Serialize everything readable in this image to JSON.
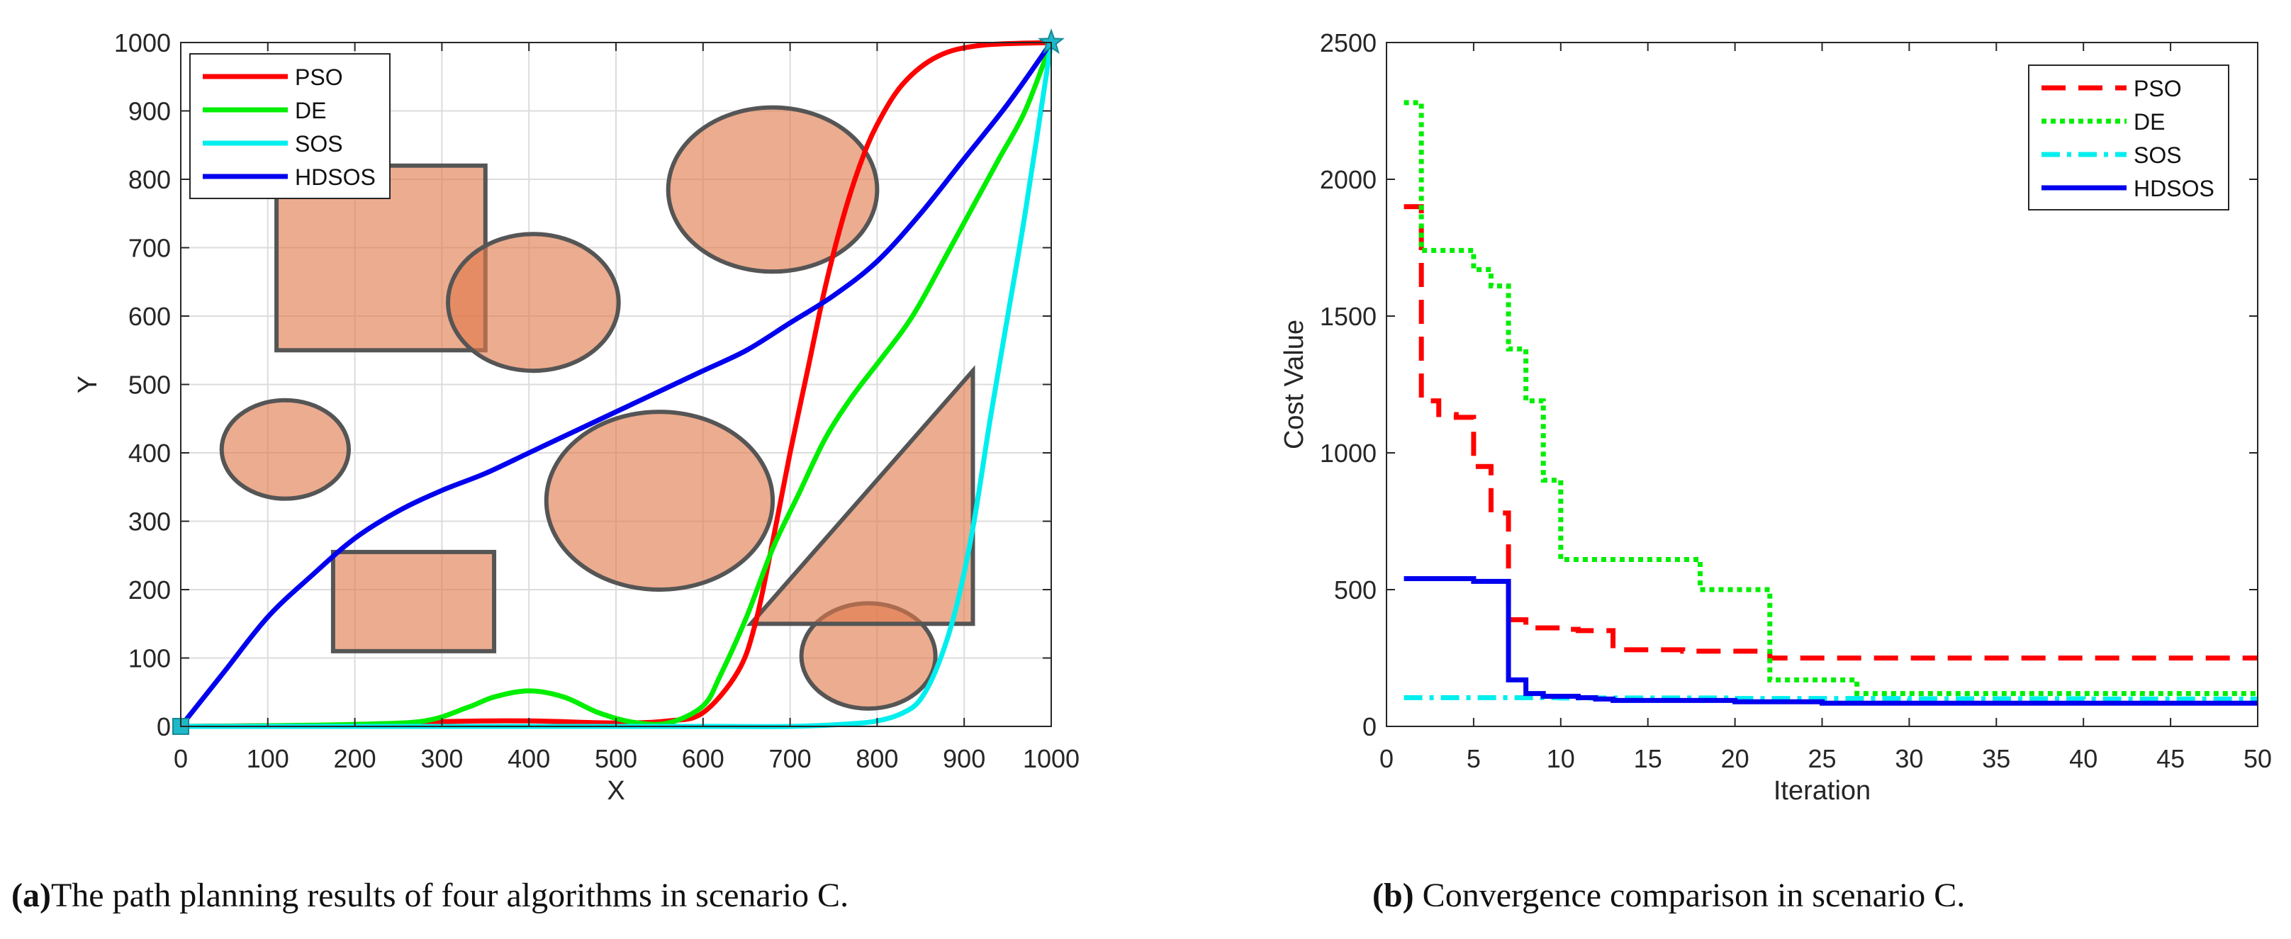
{
  "chart_data": [
    {
      "type": "line",
      "subtype": "path-planning",
      "xlabel": "X",
      "ylabel": "Y",
      "xlim": [
        0,
        1000
      ],
      "ylim": [
        0,
        1000
      ],
      "xticks": [
        0,
        100,
        200,
        300,
        400,
        500,
        600,
        700,
        800,
        900,
        1000
      ],
      "yticks": [
        0,
        100,
        200,
        300,
        400,
        500,
        600,
        700,
        800,
        900,
        1000
      ],
      "grid": true,
      "legend_position": "top-left",
      "start": [
        0,
        0
      ],
      "goal": [
        1000,
        1000
      ],
      "obstacles": [
        {
          "shape": "rect",
          "x": [
            110,
            350
          ],
          "y": [
            550,
            820
          ]
        },
        {
          "shape": "rect",
          "x": [
            175,
            360
          ],
          "y": [
            110,
            255
          ]
        },
        {
          "shape": "ellipse",
          "cx": 405,
          "cy": 620,
          "rx": 98,
          "ry": 100
        },
        {
          "shape": "ellipse",
          "cx": 120,
          "cy": 405,
          "rx": 73,
          "ry": 72
        },
        {
          "shape": "ellipse",
          "cx": 680,
          "cy": 785,
          "rx": 120,
          "ry": 120
        },
        {
          "shape": "ellipse",
          "cx": 550,
          "cy": 330,
          "rx": 130,
          "ry": 130
        },
        {
          "shape": "ellipse",
          "cx": 790,
          "cy": 103,
          "rx": 77,
          "ry": 77
        },
        {
          "shape": "triangle",
          "points": [
            [
              655,
              150
            ],
            [
              910,
              150
            ],
            [
              910,
              520
            ]
          ]
        }
      ],
      "series": [
        {
          "name": "PSO",
          "color": "#ff0000",
          "points": [
            [
              0,
              0
            ],
            [
              100,
              1
            ],
            [
              200,
              2
            ],
            [
              300,
              7
            ],
            [
              400,
              8
            ],
            [
              500,
              5
            ],
            [
              560,
              8
            ],
            [
              600,
              20
            ],
            [
              640,
              80
            ],
            [
              660,
              150
            ],
            [
              680,
              270
            ],
            [
              700,
              400
            ],
            [
              720,
              520
            ],
            [
              740,
              640
            ],
            [
              760,
              740
            ],
            [
              780,
              820
            ],
            [
              800,
              880
            ],
            [
              830,
              940
            ],
            [
              870,
              980
            ],
            [
              920,
              996
            ],
            [
              1000,
              1000
            ]
          ]
        },
        {
          "name": "DE",
          "color": "#00ee00",
          "points": [
            [
              0,
              0
            ],
            [
              100,
              1
            ],
            [
              200,
              3
            ],
            [
              280,
              8
            ],
            [
              330,
              28
            ],
            [
              360,
              43
            ],
            [
              400,
              52
            ],
            [
              440,
              43
            ],
            [
              480,
              20
            ],
            [
              520,
              6
            ],
            [
              560,
              5
            ],
            [
              600,
              30
            ],
            [
              620,
              75
            ],
            [
              650,
              160
            ],
            [
              680,
              260
            ],
            [
              710,
              340
            ],
            [
              740,
              420
            ],
            [
              770,
              480
            ],
            [
              800,
              530
            ],
            [
              830,
              580
            ],
            [
              850,
              620
            ],
            [
              880,
              690
            ],
            [
              910,
              760
            ],
            [
              940,
              830
            ],
            [
              970,
              900
            ],
            [
              1000,
              1000
            ]
          ]
        },
        {
          "name": "SOS",
          "color": "#00eeee",
          "points": [
            [
              0,
              0
            ],
            [
              200,
              0
            ],
            [
              400,
              0
            ],
            [
              600,
              0
            ],
            [
              700,
              0
            ],
            [
              760,
              3
            ],
            [
              800,
              8
            ],
            [
              830,
              20
            ],
            [
              850,
              40
            ],
            [
              870,
              90
            ],
            [
              890,
              170
            ],
            [
              910,
              290
            ],
            [
              930,
              450
            ],
            [
              950,
              600
            ],
            [
              970,
              750
            ],
            [
              1000,
              1000
            ]
          ]
        },
        {
          "name": "HDSOS",
          "color": "#0000ee",
          "points": [
            [
              0,
              0
            ],
            [
              50,
              80
            ],
            [
              100,
              160
            ],
            [
              150,
              220
            ],
            [
              200,
              275
            ],
            [
              250,
              315
            ],
            [
              300,
              345
            ],
            [
              350,
              370
            ],
            [
              400,
              400
            ],
            [
              450,
              430
            ],
            [
              500,
              460
            ],
            [
              550,
              490
            ],
            [
              600,
              520
            ],
            [
              650,
              550
            ],
            [
              700,
              590
            ],
            [
              750,
              630
            ],
            [
              800,
              680
            ],
            [
              850,
              750
            ],
            [
              900,
              830
            ],
            [
              950,
              910
            ],
            [
              1000,
              1000
            ]
          ]
        }
      ],
      "caption_label": "(a)",
      "caption_text": "The path planning results of four algorithms in scenario C."
    },
    {
      "type": "line",
      "subtype": "convergence",
      "xlabel": "Iteration",
      "ylabel": "Cost Value",
      "xlim": [
        0,
        50
      ],
      "ylim": [
        0,
        2500
      ],
      "xticks": [
        0,
        5,
        10,
        15,
        20,
        25,
        30,
        35,
        40,
        45,
        50
      ],
      "yticks": [
        0,
        500,
        1000,
        1500,
        2000,
        2500
      ],
      "grid": false,
      "legend_position": "top-right",
      "series": [
        {
          "name": "PSO",
          "color": "#ff0000",
          "dash": "dashed",
          "x": [
            1,
            2,
            3,
            4,
            5,
            6,
            7,
            8,
            9,
            10,
            11,
            12,
            13,
            14,
            15,
            16,
            17,
            18,
            19,
            20,
            21,
            22,
            25,
            30,
            35,
            40,
            45,
            50
          ],
          "values": [
            1900,
            1190,
            1140,
            1130,
            950,
            780,
            390,
            360,
            360,
            355,
            350,
            350,
            280,
            280,
            280,
            280,
            275,
            275,
            275,
            275,
            275,
            250,
            250,
            250,
            250,
            250,
            250,
            250
          ]
        },
        {
          "name": "DE",
          "color": "#00ee00",
          "dash": "dotted",
          "x": [
            1,
            2,
            3,
            4,
            5,
            6,
            7,
            8,
            9,
            10,
            11,
            12,
            13,
            14,
            15,
            16,
            17,
            18,
            19,
            20,
            21,
            22,
            23,
            24,
            25,
            26,
            27,
            30,
            35,
            40,
            45,
            50
          ],
          "values": [
            2280,
            1740,
            1740,
            1740,
            1670,
            1610,
            1380,
            1190,
            900,
            610,
            610,
            610,
            610,
            610,
            610,
            610,
            610,
            500,
            500,
            500,
            500,
            170,
            170,
            170,
            170,
            170,
            120,
            120,
            120,
            120,
            120,
            120
          ]
        },
        {
          "name": "SOS",
          "color": "#00eeee",
          "dash": "dashdot",
          "x": [
            1,
            10,
            20,
            30,
            40,
            50
          ],
          "values": [
            105,
            104,
            102,
            101,
            100,
            100
          ]
        },
        {
          "name": "HDSOS",
          "color": "#0000ee",
          "dash": "solid",
          "x": [
            1,
            2,
            3,
            4,
            5,
            6,
            7,
            8,
            9,
            10,
            11,
            12,
            13,
            14,
            15,
            20,
            25,
            30,
            40,
            50
          ],
          "values": [
            540,
            540,
            540,
            540,
            530,
            530,
            170,
            120,
            110,
            110,
            105,
            100,
            95,
            95,
            95,
            90,
            85,
            85,
            85,
            85
          ]
        }
      ],
      "caption_label": "(b)",
      "caption_text": "Convergence comparison in scenario C."
    }
  ]
}
